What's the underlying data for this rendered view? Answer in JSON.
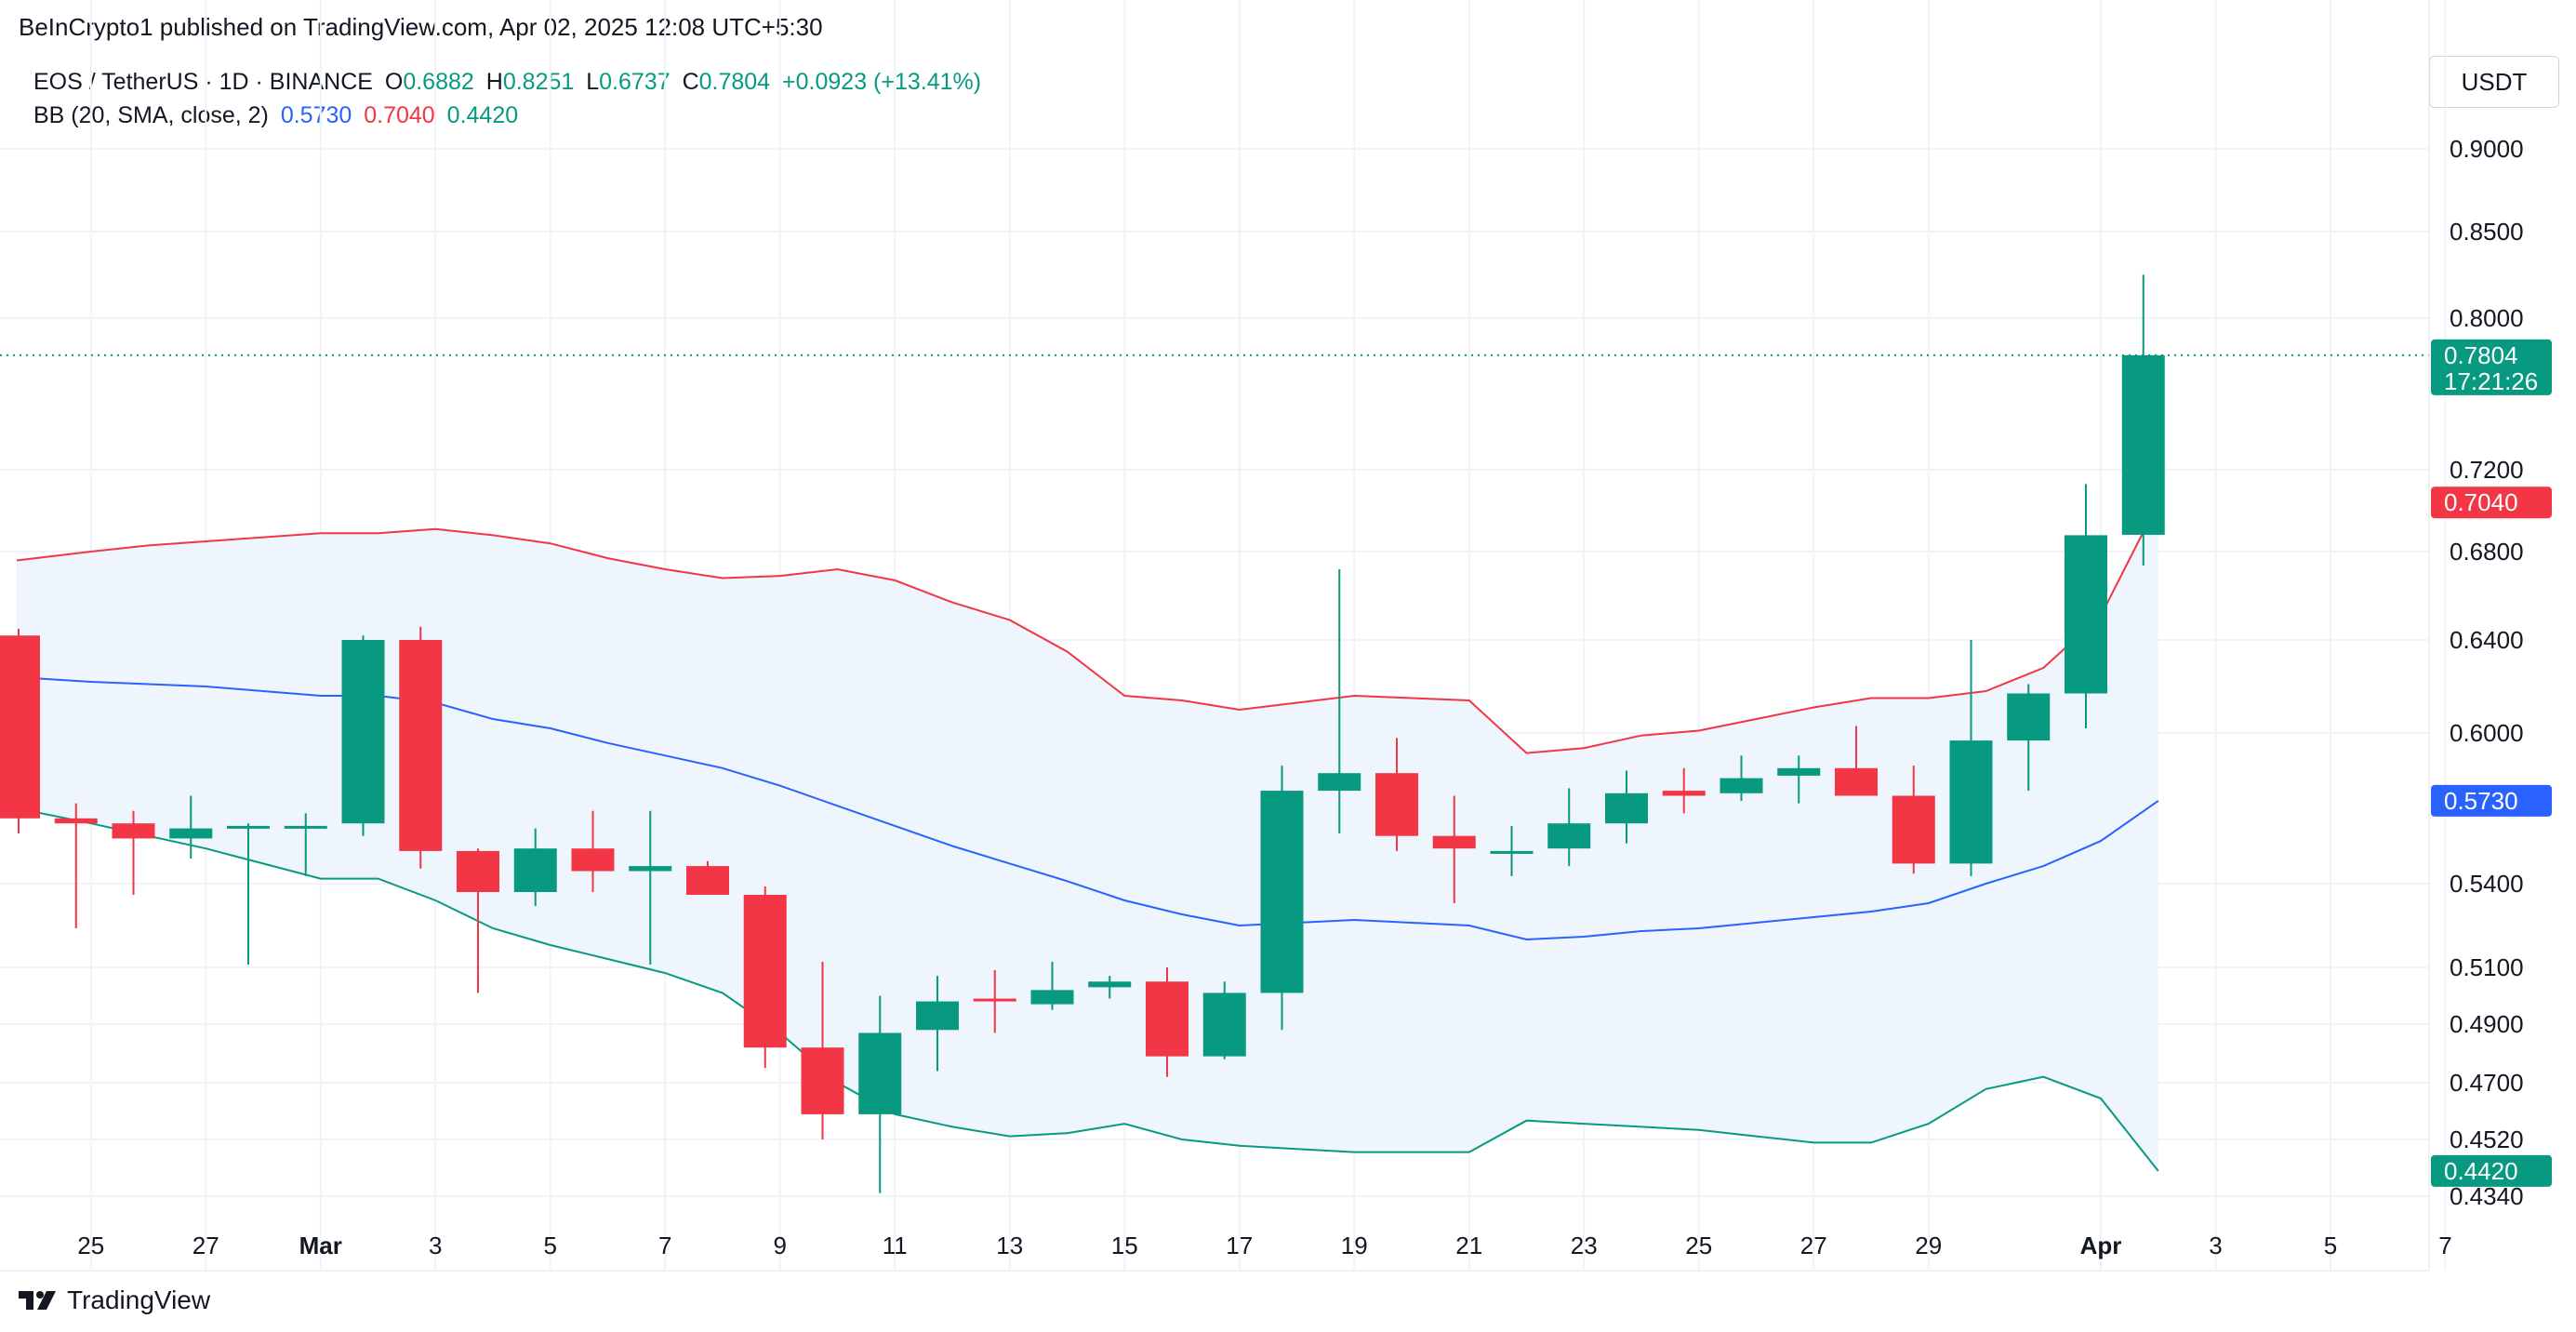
{
  "header": {
    "published": "BeInCrypto1 published on TradingView.com, Apr 02, 2025 12:08 UTC+5:30",
    "symbol": "EOS / TetherUS · 1D · BINANCE",
    "o_label": "O",
    "o_value": "0.6882",
    "h_label": "H",
    "h_value": "0.8251",
    "l_label": "L",
    "l_value": "0.6737",
    "c_label": "C",
    "c_value": "0.7804",
    "change": "+0.0923 (+13.41%)",
    "bb_label": "BB (20, SMA, close, 2)",
    "bb_basis": "0.5730",
    "bb_upper": "0.7040",
    "bb_lower": "0.4420"
  },
  "currency": "USDT",
  "footer": {
    "brand": "TradingView"
  },
  "colors": {
    "up": "#089981",
    "down": "#f23645",
    "upper": "#f23645",
    "basis": "#2962ff",
    "lower": "#089981",
    "fill": "#eef5fd",
    "grid": "#f0f3fa"
  },
  "tags": {
    "price": "0.7804",
    "countdown": "17:21:26",
    "upper": "0.7040",
    "basis": "0.5730",
    "lower": "0.4420"
  },
  "chart_data": {
    "type": "candlestick",
    "title": "EOS / TetherUS · 1D · BINANCE",
    "y_ticks": [
      "0.9000",
      "0.8500",
      "0.8000",
      "0.7200",
      "0.6800",
      "0.6400",
      "0.6000",
      "0.5400",
      "0.5100",
      "0.4900",
      "0.4700",
      "0.4520",
      "0.4340"
    ],
    "x_ticks": [
      {
        "label": "25",
        "bar": 1
      },
      {
        "label": "27",
        "bar": 3
      },
      {
        "label": "Mar",
        "bar": 5,
        "bold": true
      },
      {
        "label": "3",
        "bar": 7
      },
      {
        "label": "5",
        "bar": 9
      },
      {
        "label": "7",
        "bar": 11
      },
      {
        "label": "9",
        "bar": 13
      },
      {
        "label": "11",
        "bar": 15
      },
      {
        "label": "13",
        "bar": 17
      },
      {
        "label": "15",
        "bar": 19
      },
      {
        "label": "17",
        "bar": 21
      },
      {
        "label": "19",
        "bar": 23
      },
      {
        "label": "21",
        "bar": 25
      },
      {
        "label": "23",
        "bar": 27
      },
      {
        "label": "25",
        "bar": 29
      },
      {
        "label": "27",
        "bar": 31
      },
      {
        "label": "29",
        "bar": 33
      },
      {
        "label": "Apr",
        "bar": 36,
        "bold": true
      },
      {
        "label": "3",
        "bar": 38
      },
      {
        "label": "5",
        "bar": 40
      },
      {
        "label": "7",
        "bar": 42
      }
    ],
    "candles": [
      {
        "o": 0.642,
        "h": 0.645,
        "l": 0.56,
        "c": 0.566
      },
      {
        "o": 0.566,
        "h": 0.572,
        "l": 0.524,
        "c": 0.564
      },
      {
        "o": 0.564,
        "h": 0.569,
        "l": 0.536,
        "c": 0.558
      },
      {
        "o": 0.558,
        "h": 0.575,
        "l": 0.55,
        "c": 0.562
      },
      {
        "o": 0.563,
        "h": 0.564,
        "l": 0.511,
        "c": 0.563
      },
      {
        "o": 0.562,
        "h": 0.568,
        "l": 0.543,
        "c": 0.563
      },
      {
        "o": 0.564,
        "h": 0.642,
        "l": 0.559,
        "c": 0.64
      },
      {
        "o": 0.64,
        "h": 0.646,
        "l": 0.546,
        "c": 0.553
      },
      {
        "o": 0.553,
        "h": 0.554,
        "l": 0.501,
        "c": 0.537
      },
      {
        "o": 0.537,
        "h": 0.562,
        "l": 0.532,
        "c": 0.554
      },
      {
        "o": 0.554,
        "h": 0.569,
        "l": 0.537,
        "c": 0.545
      },
      {
        "o": 0.545,
        "h": 0.569,
        "l": 0.511,
        "c": 0.547
      },
      {
        "o": 0.547,
        "h": 0.549,
        "l": 0.537,
        "c": 0.536
      },
      {
        "o": 0.536,
        "h": 0.539,
        "l": 0.475,
        "c": 0.482
      },
      {
        "o": 0.482,
        "h": 0.512,
        "l": 0.452,
        "c": 0.46
      },
      {
        "o": 0.46,
        "h": 0.5,
        "l": 0.435,
        "c": 0.487
      },
      {
        "o": 0.488,
        "h": 0.507,
        "l": 0.474,
        "c": 0.498
      },
      {
        "o": 0.499,
        "h": 0.509,
        "l": 0.487,
        "c": 0.498
      },
      {
        "o": 0.497,
        "h": 0.512,
        "l": 0.495,
        "c": 0.502
      },
      {
        "o": 0.503,
        "h": 0.507,
        "l": 0.499,
        "c": 0.505
      },
      {
        "o": 0.505,
        "h": 0.51,
        "l": 0.472,
        "c": 0.479
      },
      {
        "o": 0.479,
        "h": 0.505,
        "l": 0.478,
        "c": 0.501
      },
      {
        "o": 0.501,
        "h": 0.587,
        "l": 0.488,
        "c": 0.577
      },
      {
        "o": 0.577,
        "h": 0.672,
        "l": 0.56,
        "c": 0.584
      },
      {
        "o": 0.584,
        "h": 0.598,
        "l": 0.553,
        "c": 0.559
      },
      {
        "o": 0.559,
        "h": 0.575,
        "l": 0.533,
        "c": 0.554
      },
      {
        "o": 0.553,
        "h": 0.563,
        "l": 0.543,
        "c": 0.553
      },
      {
        "o": 0.554,
        "h": 0.578,
        "l": 0.547,
        "c": 0.564
      },
      {
        "o": 0.564,
        "h": 0.585,
        "l": 0.556,
        "c": 0.576
      },
      {
        "o": 0.577,
        "h": 0.586,
        "l": 0.568,
        "c": 0.575
      },
      {
        "o": 0.576,
        "h": 0.591,
        "l": 0.573,
        "c": 0.582
      },
      {
        "o": 0.583,
        "h": 0.591,
        "l": 0.572,
        "c": 0.586
      },
      {
        "o": 0.586,
        "h": 0.603,
        "l": 0.576,
        "c": 0.575
      },
      {
        "o": 0.575,
        "h": 0.587,
        "l": 0.544,
        "c": 0.548
      },
      {
        "o": 0.548,
        "h": 0.64,
        "l": 0.543,
        "c": 0.597
      },
      {
        "o": 0.597,
        "h": 0.621,
        "l": 0.577,
        "c": 0.617
      },
      {
        "o": 0.617,
        "h": 0.713,
        "l": 0.602,
        "c": 0.688
      },
      {
        "o": 0.6882,
        "h": 0.8251,
        "l": 0.6737,
        "c": 0.7804
      }
    ],
    "bb_upper": [
      0.676,
      0.68,
      0.683,
      0.685,
      0.687,
      0.689,
      0.689,
      0.691,
      0.688,
      0.684,
      0.677,
      0.672,
      0.668,
      0.669,
      0.672,
      0.667,
      0.657,
      0.649,
      0.635,
      0.616,
      0.614,
      0.61,
      0.613,
      0.616,
      0.615,
      0.614,
      0.592,
      0.594,
      0.599,
      0.601,
      0.606,
      0.611,
      0.615,
      0.615,
      0.618,
      0.628,
      0.651,
      0.704
    ],
    "bb_basis": [
      0.624,
      0.622,
      0.621,
      0.62,
      0.618,
      0.616,
      0.616,
      0.613,
      0.606,
      0.602,
      0.596,
      0.591,
      0.586,
      0.579,
      0.571,
      0.563,
      0.555,
      0.548,
      0.541,
      0.534,
      0.529,
      0.525,
      0.526,
      0.527,
      0.526,
      0.525,
      0.52,
      0.521,
      0.523,
      0.524,
      0.526,
      0.528,
      0.53,
      0.533,
      0.54,
      0.547,
      0.557,
      0.573
    ],
    "bb_lower": [
      0.57,
      0.564,
      0.559,
      0.554,
      0.548,
      0.542,
      0.542,
      0.534,
      0.524,
      0.518,
      0.513,
      0.508,
      0.501,
      0.487,
      0.47,
      0.46,
      0.456,
      0.453,
      0.454,
      0.457,
      0.452,
      0.45,
      0.449,
      0.448,
      0.448,
      0.448,
      0.458,
      0.457,
      0.456,
      0.455,
      0.453,
      0.451,
      0.451,
      0.457,
      0.468,
      0.472,
      0.465,
      0.442
    ]
  }
}
